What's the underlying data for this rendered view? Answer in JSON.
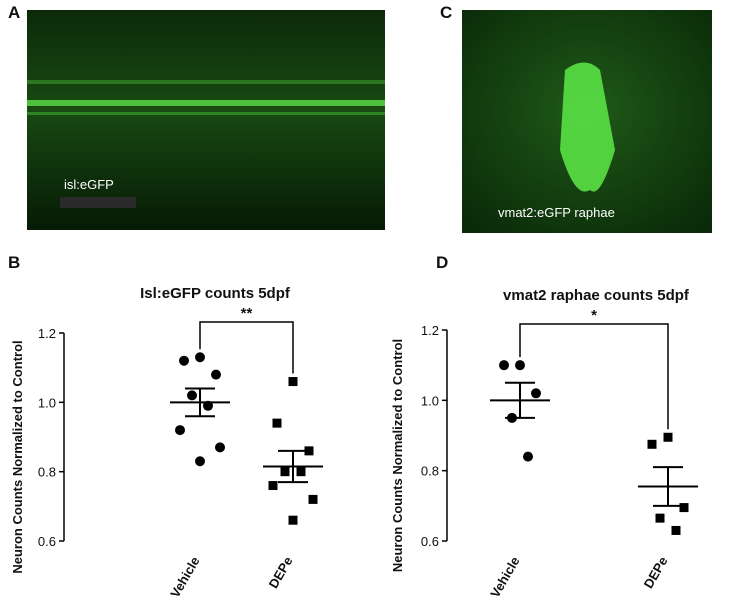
{
  "images": [
    {
      "label": "A",
      "caption": "isl:eGFP"
    },
    {
      "label": "C",
      "caption": "vmat2:eGFP raphae"
    }
  ],
  "chart_data": [
    {
      "type": "dotplot",
      "panel": "B",
      "title": "Isl:eGFP counts  5dpf",
      "y_label": "Neuron Counts Normalized to Control",
      "categories": [
        "Vehicle",
        "DEPe"
      ],
      "points": [
        [
          1.13,
          1.12,
          1.08,
          1.02,
          0.99,
          0.92,
          0.87,
          0.83
        ],
        [
          1.06,
          0.94,
          0.86,
          0.8,
          0.8,
          0.76,
          0.72,
          0.66
        ]
      ],
      "markers": [
        "circle",
        "square"
      ],
      "color": "#000000",
      "means": [
        1.0,
        0.815
      ],
      "sem": [
        0.04,
        0.045
      ],
      "annotation": "**",
      "ylim": [
        0.6,
        1.2
      ],
      "yticks": [
        0.6,
        0.8,
        {
          "value": 1,
          "label": "1.0"
        },
        1.2
      ]
    },
    {
      "type": "dotplot",
      "panel": "D",
      "title": "vmat2 raphae counts 5dpf",
      "y_label": "Neuron Counts Normalized to Control",
      "categories": [
        "Vehicle",
        "DEPe"
      ],
      "points": [
        [
          1.1,
          1.1,
          1.02,
          0.95,
          0.84
        ],
        [
          0.895,
          0.875,
          0.695,
          0.665,
          0.63
        ]
      ],
      "markers": [
        "circle",
        "square"
      ],
      "color": "#000000",
      "means": [
        1.0,
        0.755
      ],
      "sem": [
        0.05,
        0.055
      ],
      "annotation": "*",
      "ylim": [
        0.6,
        1.2
      ],
      "yticks": [
        0.6,
        0.8,
        {
          "value": 1,
          "label": "1.0"
        },
        1.2
      ]
    }
  ]
}
